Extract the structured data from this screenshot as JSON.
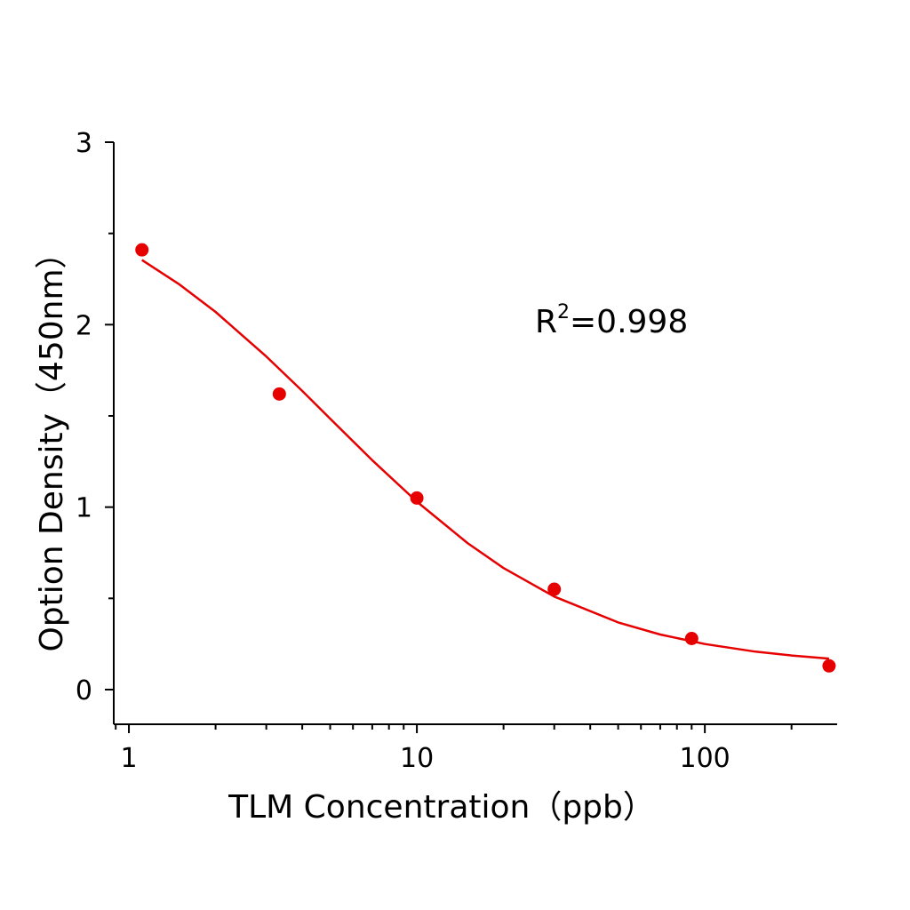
{
  "chart_data": {
    "type": "scatter",
    "xlabel": "TLM  Concentration（ppb）",
    "ylabel": "Option Density（450nm）",
    "x_scale": "log",
    "xlim": [
      0.886,
      288
    ],
    "ylim": [
      -0.19,
      3
    ],
    "x_ticks": [
      1,
      10,
      100
    ],
    "x_tick_labels": [
      "1",
      "10",
      "100"
    ],
    "y_ticks": [
      0,
      1,
      2,
      3
    ],
    "y_tick_labels": [
      "0",
      "1",
      "2",
      "3"
    ],
    "grid": false,
    "annotation": {
      "base": "R",
      "sup": "2",
      "rest": "=0.998"
    },
    "color": "#e60000",
    "series": [
      {
        "kind": "points",
        "x": [
          1.11,
          3.33,
          10,
          30,
          90,
          270
        ],
        "y": [
          2.41,
          1.62,
          1.05,
          0.55,
          0.28,
          0.13
        ]
      },
      {
        "kind": "fit-curve",
        "x": [
          1.11,
          1.5,
          2,
          3,
          4,
          5,
          7,
          10,
          15,
          20,
          30,
          50,
          70,
          100,
          150,
          200,
          270
        ],
        "y": [
          2.354,
          2.22,
          2.07,
          1.826,
          1.637,
          1.485,
          1.257,
          1.03,
          0.803,
          0.666,
          0.51,
          0.368,
          0.302,
          0.25,
          0.208,
          0.187,
          0.17
        ]
      }
    ]
  }
}
